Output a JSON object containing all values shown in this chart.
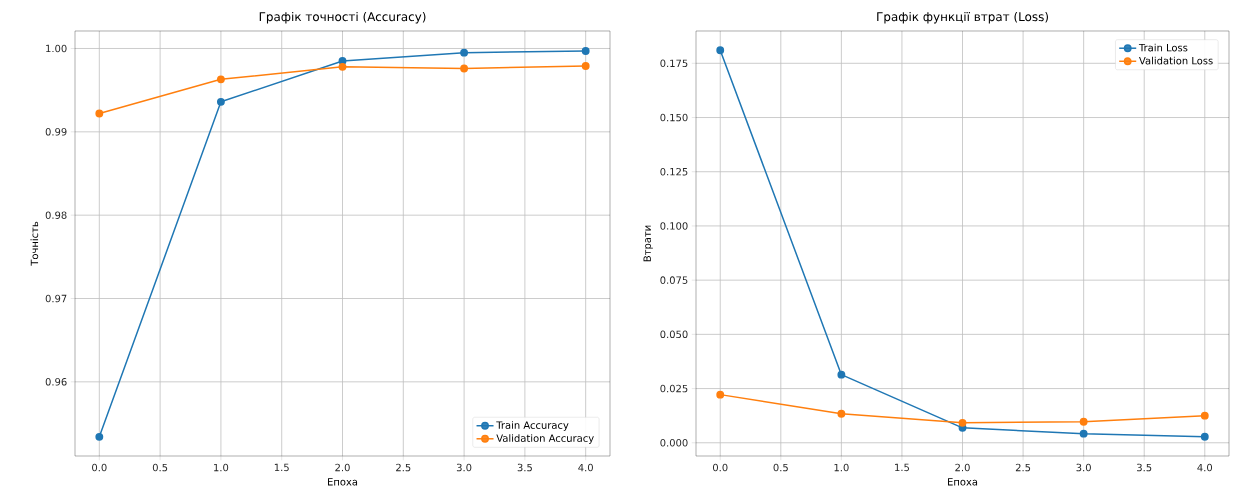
{
  "chart_data": [
    {
      "type": "line",
      "title": "Графік точності (Accuracy)",
      "xlabel": "Епоха",
      "ylabel": "Точність",
      "x": [
        0,
        1,
        2,
        3,
        4
      ],
      "series": [
        {
          "name": "Train Accuracy",
          "color": "#1f77b4",
          "values": [
            0.9534,
            0.9936,
            0.9985,
            0.9995,
            0.9997
          ]
        },
        {
          "name": "Validation Accuracy",
          "color": "#ff7f0e",
          "values": [
            0.9922,
            0.9963,
            0.9978,
            0.9976,
            0.9979
          ]
        }
      ],
      "xlim": [
        -0.2,
        4.2
      ],
      "ylim": [
        0.9511,
        1.0021
      ],
      "xticks": [
        {
          "value": 0,
          "label": "0.0"
        },
        {
          "value": 0.5,
          "label": "0.5"
        },
        {
          "value": 1,
          "label": "1.0"
        },
        {
          "value": 1.5,
          "label": "1.5"
        },
        {
          "value": 2,
          "label": "2.0"
        },
        {
          "value": 2.5,
          "label": "2.5"
        },
        {
          "value": 3,
          "label": "3.0"
        },
        {
          "value": 3.5,
          "label": "3.5"
        },
        {
          "value": 4,
          "label": "4.0"
        }
      ],
      "yticks": [
        {
          "value": 0.96,
          "label": "0.96"
        },
        {
          "value": 0.97,
          "label": "0.97"
        },
        {
          "value": 0.98,
          "label": "0.98"
        },
        {
          "value": 0.99,
          "label": "0.99"
        },
        {
          "value": 1.0,
          "label": "1.00"
        }
      ],
      "grid": true,
      "legend": "bottom right",
      "marker": "circle",
      "line_style": "solid"
    },
    {
      "type": "line",
      "title": "Графік функції втрат (Loss)",
      "xlabel": "Епоха",
      "ylabel": "Втрати",
      "x": [
        0,
        1,
        2,
        3,
        4
      ],
      "series": [
        {
          "name": "Train Loss",
          "color": "#1f77b4",
          "values": [
            0.181,
            0.0314,
            0.0069,
            0.0042,
            0.0028
          ]
        },
        {
          "name": "Validation Loss",
          "color": "#ff7f0e",
          "values": [
            0.0222,
            0.0134,
            0.0092,
            0.0097,
            0.0125
          ]
        }
      ],
      "xlim": [
        -0.2,
        4.2
      ],
      "ylim": [
        -0.0061,
        0.1899
      ],
      "xticks": [
        {
          "value": 0,
          "label": "0.0"
        },
        {
          "value": 0.5,
          "label": "0.5"
        },
        {
          "value": 1,
          "label": "1.0"
        },
        {
          "value": 1.5,
          "label": "1.5"
        },
        {
          "value": 2,
          "label": "2.0"
        },
        {
          "value": 2.5,
          "label": "2.5"
        },
        {
          "value": 3,
          "label": "3.0"
        },
        {
          "value": 3.5,
          "label": "3.5"
        },
        {
          "value": 4,
          "label": "4.0"
        }
      ],
      "yticks": [
        {
          "value": 0.0,
          "label": "0.000"
        },
        {
          "value": 0.025,
          "label": "0.025"
        },
        {
          "value": 0.05,
          "label": "0.050"
        },
        {
          "value": 0.075,
          "label": "0.075"
        },
        {
          "value": 0.1,
          "label": "0.100"
        },
        {
          "value": 0.125,
          "label": "0.125"
        },
        {
          "value": 0.15,
          "label": "0.150"
        },
        {
          "value": 0.175,
          "label": "0.175"
        }
      ],
      "grid": true,
      "legend": "top right",
      "marker": "circle",
      "line_style": "solid"
    }
  ]
}
